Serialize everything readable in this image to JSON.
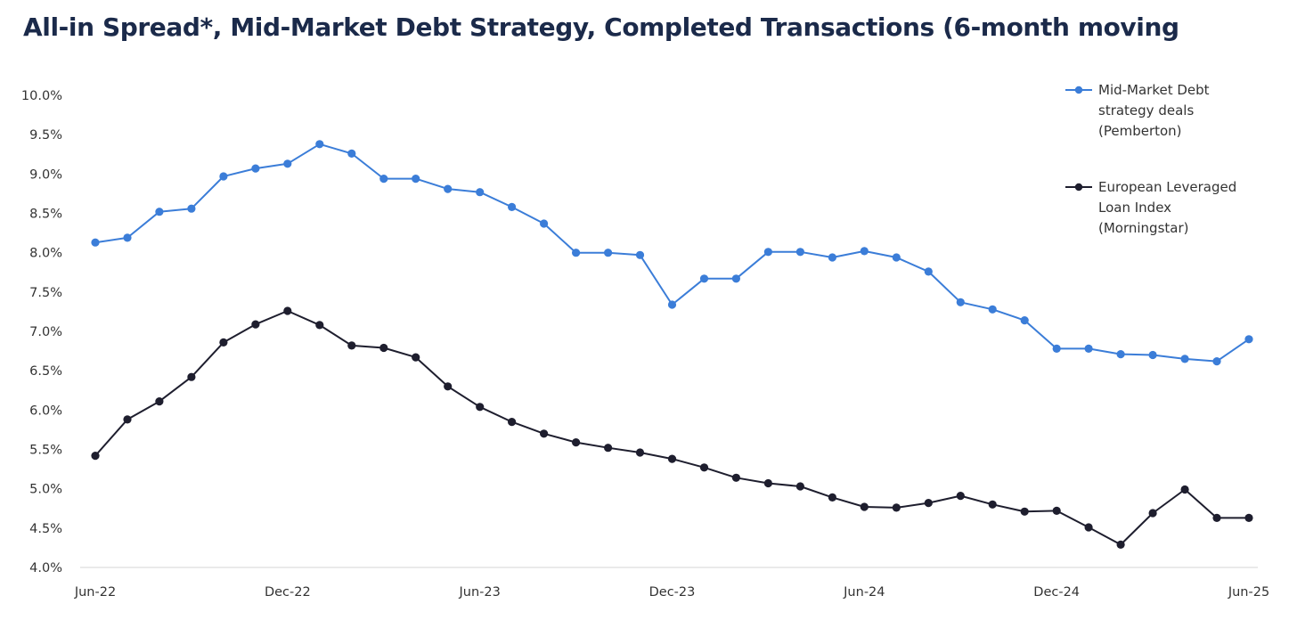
{
  "header": {
    "title": "All-in Spread*, Mid-Market Debt Strategy, Completed Transactions (6-month moving"
  },
  "chart_data": {
    "type": "line",
    "title": "All-in Spread*, Mid-Market Debt Strategy, Completed Transactions (6-month moving",
    "xlabel": "",
    "ylabel": "",
    "ylim": [
      4.0,
      10.0
    ],
    "y_ticks": [
      "4.0%",
      "4.5%",
      "5.0%",
      "5.5%",
      "6.0%",
      "6.5%",
      "7.0%",
      "7.5%",
      "8.0%",
      "8.5%",
      "9.0%",
      "9.5%",
      "10.0%"
    ],
    "x_ticks": [
      "Jun-22",
      "Dec-22",
      "Jun-23",
      "Dec-23",
      "Jun-24",
      "Dec-24",
      "Jun-25"
    ],
    "x_tick_index": [
      0,
      6,
      12,
      18,
      24,
      30,
      36
    ],
    "x": [
      "Jun-22",
      "Jul-22",
      "Aug-22",
      "Sep-22",
      "Oct-22",
      "Nov-22",
      "Dec-22",
      "Jan-23",
      "Feb-23",
      "Mar-23",
      "Apr-23",
      "May-23",
      "Jun-23",
      "Jul-23",
      "Aug-23",
      "Sep-23",
      "Oct-23",
      "Nov-23",
      "Dec-23",
      "Jan-24",
      "Feb-24",
      "Mar-24",
      "Apr-24",
      "May-24",
      "Jun-24",
      "Jul-24",
      "Aug-24",
      "Sep-24",
      "Oct-24",
      "Nov-24",
      "Dec-24",
      "Jan-25",
      "Feb-25",
      "Mar-25",
      "Apr-25",
      "May-25",
      "Jun-25"
    ],
    "grid": false,
    "legend_position": "top-right",
    "series": [
      {
        "name": "Mid-Market Debt strategy deals (Pemberton)",
        "legend_lines": [
          "Mid-Market Debt",
          "strategy deals",
          "(Pemberton)"
        ],
        "color": "#3b7dd8",
        "values": [
          8.13,
          8.19,
          8.52,
          8.56,
          8.97,
          9.07,
          9.13,
          9.38,
          9.26,
          8.94,
          8.94,
          8.81,
          8.77,
          8.58,
          8.37,
          8.0,
          8.0,
          7.97,
          7.34,
          7.67,
          7.67,
          8.01,
          8.01,
          7.94,
          8.02,
          7.94,
          7.76,
          7.37,
          7.28,
          7.14,
          6.78,
          6.78,
          6.71,
          6.7,
          6.65,
          6.62,
          6.9
        ]
      },
      {
        "name": "European Leveraged Loan Index (Morningstar)",
        "legend_lines": [
          "European Leveraged",
          "Loan Index",
          "(Morningstar)"
        ],
        "color": "#1e1e2e",
        "values": [
          5.42,
          5.88,
          6.11,
          6.42,
          6.86,
          7.09,
          7.26,
          7.08,
          6.82,
          6.79,
          6.67,
          6.3,
          6.04,
          5.85,
          5.7,
          5.59,
          5.52,
          5.46,
          5.38,
          5.27,
          5.14,
          5.07,
          5.03,
          4.89,
          4.77,
          4.76,
          4.82,
          4.91,
          4.8,
          4.71,
          4.72,
          4.51,
          4.29,
          4.69,
          4.99,
          4.63,
          4.63
        ]
      }
    ]
  }
}
